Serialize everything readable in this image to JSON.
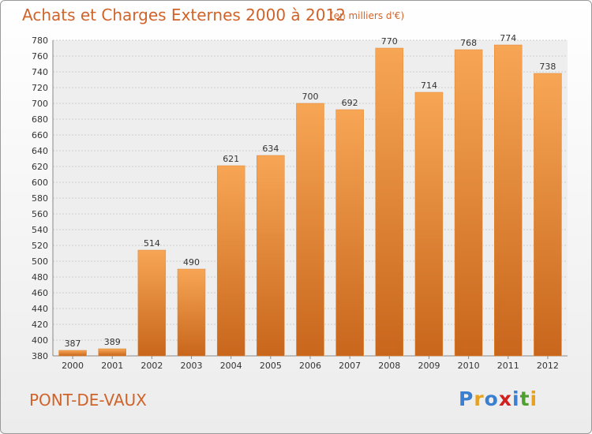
{
  "chart_data": {
    "type": "bar",
    "title": "Achats et Charges Externes 2000 à 2012",
    "subtitle": "(en milliers d'€)",
    "categories": [
      "2000",
      "2001",
      "2002",
      "2003",
      "2004",
      "2005",
      "2006",
      "2007",
      "2008",
      "2009",
      "2010",
      "2011",
      "2012"
    ],
    "values": [
      387,
      389,
      514,
      490,
      621,
      634,
      700,
      692,
      770,
      714,
      768,
      774,
      738
    ],
    "ylim": [
      380,
      780
    ],
    "yticks": [
      380,
      400,
      420,
      440,
      460,
      480,
      500,
      520,
      540,
      560,
      580,
      600,
      620,
      640,
      660,
      680,
      700,
      720,
      740,
      760,
      780
    ],
    "grid": true,
    "bar_color": "#f0923a",
    "legend": "none"
  },
  "footer": {
    "commune": "PONT-DE-VAUX",
    "logo": {
      "text": "Proxiti",
      "letters": [
        {
          "char": "P",
          "color": "#3a7fd0"
        },
        {
          "char": "r",
          "color": "#e8a020"
        },
        {
          "char": "o",
          "color": "#3a7fd0"
        },
        {
          "char": "x",
          "color": "#d02020"
        },
        {
          "char": "i",
          "color": "#3a7fd0"
        },
        {
          "char": "t",
          "color": "#50a030"
        },
        {
          "char": "i",
          "color": "#e8a020"
        }
      ]
    }
  }
}
